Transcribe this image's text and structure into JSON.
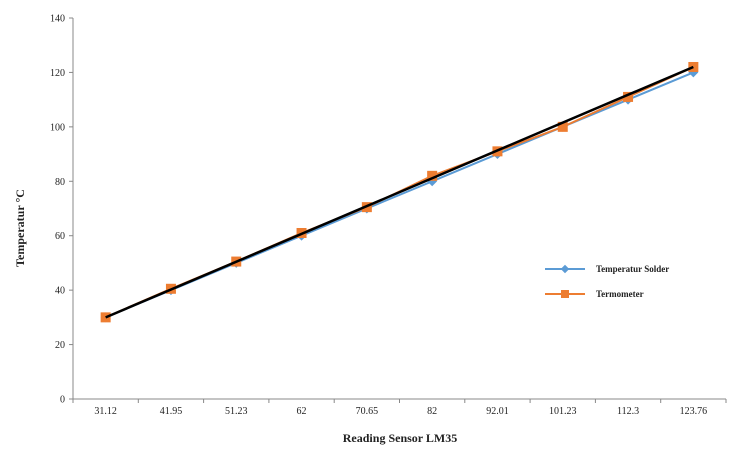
{
  "chart_data": {
    "type": "line",
    "title": "",
    "xlabel": "Reading Sensor LM35",
    "ylabel": "Temperatur °C",
    "categories": [
      "31.12",
      "41.95",
      "51.23",
      "62",
      "70.65",
      "82",
      "92.01",
      "101.23",
      "112.3",
      "123.76"
    ],
    "ylim": [
      0,
      140
    ],
    "yticks": [
      0,
      20,
      40,
      60,
      80,
      100,
      120,
      140
    ],
    "grid": false,
    "legend_position": "right",
    "series": [
      {
        "name": "Temperatur Solder",
        "values": [
          30,
          40,
          50,
          60,
          70,
          80,
          90,
          100,
          110,
          120
        ],
        "color": "#5b9bd5",
        "marker": "diamond"
      },
      {
        "name": "Termometer",
        "values": [
          30,
          40.5,
          50.5,
          61,
          70.5,
          82,
          91,
          100,
          111,
          122
        ],
        "color": "#ed7d31",
        "marker": "square"
      }
    ],
    "trendline": {
      "start": 30,
      "end": 122,
      "color": "#000000"
    }
  }
}
